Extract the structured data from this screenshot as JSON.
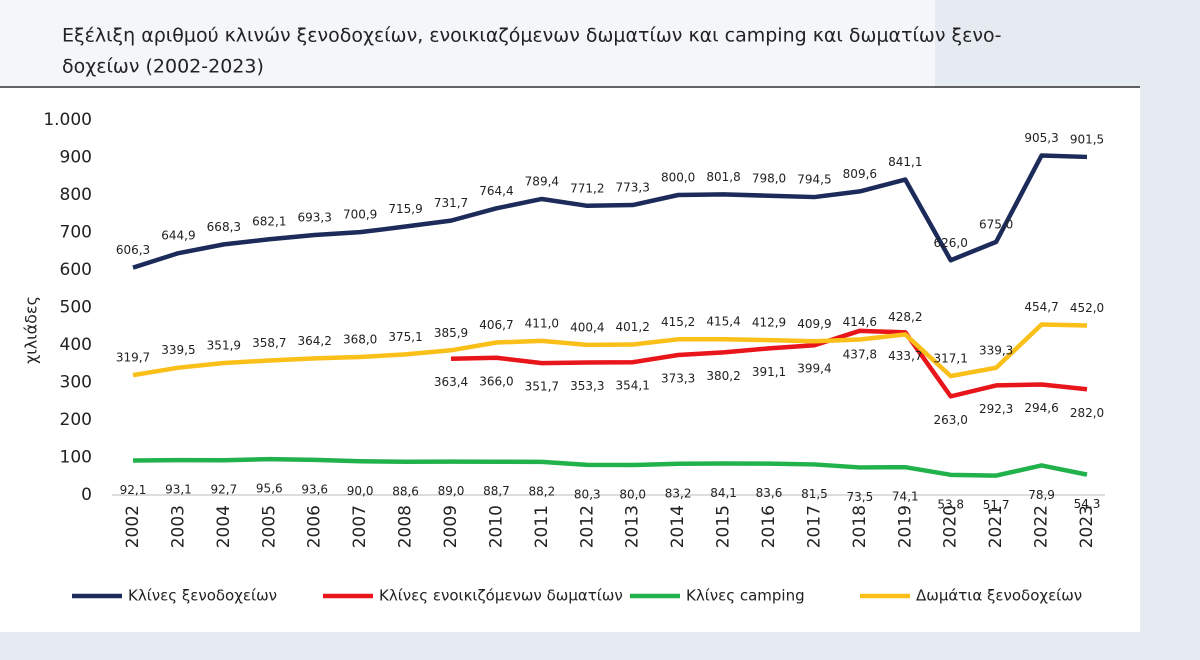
{
  "chart_data": {
    "type": "line",
    "title": [
      "Εξέλιξη αριθμού κλινών ξενοδοχείων, ενοικιαζόμενων δωματίων και camping και δωματίων ξενο-",
      "δοχείων (2002-2023)"
    ],
    "ylabel": "χιλιάδες",
    "categories": [
      "2002",
      "2003",
      "2004",
      "2005",
      "2006",
      "2007",
      "2008",
      "2009",
      "2010",
      "2011",
      "2012",
      "2013",
      "2014",
      "2015",
      "2016",
      "2017",
      "2018",
      "2019",
      "2020",
      "2021",
      "2022",
      "2023"
    ],
    "ylim": [
      0,
      1000
    ],
    "yticks": [
      0,
      100,
      200,
      300,
      400,
      500,
      600,
      700,
      800,
      900,
      {
        "value": 1000,
        "label": "1.000"
      }
    ],
    "grid": false,
    "legend": "bottom",
    "series": [
      {
        "name": "Κλίνες ξενοδοχείων",
        "color": "#1c2b5a",
        "values": [
          606.3,
          644.9,
          668.3,
          682.1,
          693.3,
          700.9,
          715.9,
          731.7,
          764.4,
          789.4,
          771.2,
          773.3,
          800.0,
          801.8,
          798.0,
          794.5,
          809.6,
          841.1,
          626.0,
          675.0,
          905.3,
          901.5
        ],
        "value_labels": [
          "606,3",
          "644,9",
          "668,3",
          "682,1",
          "693,3",
          "700,9",
          "715,9",
          "731,7",
          "764,4",
          "789,4",
          "771,2",
          "773,3",
          "800,0",
          "801,8",
          "798,0",
          "794,5",
          "809,6",
          "841,1",
          "626,0",
          "675,0",
          "905,3",
          "901,5"
        ]
      },
      {
        "name": "Κλίνες ενοικιζόμενων δωματίων",
        "color": "#e8151b",
        "values": [
          null,
          null,
          null,
          null,
          null,
          null,
          null,
          363.4,
          366.0,
          351.7,
          353.3,
          354.1,
          373.3,
          380.2,
          391.1,
          399.4,
          437.8,
          433.7,
          263.0,
          292.3,
          294.6,
          282.0
        ],
        "value_labels": [
          null,
          null,
          null,
          null,
          null,
          null,
          null,
          "363,4",
          "366,0",
          "351,7",
          "353,3",
          "354,1",
          "373,3",
          "380,2",
          "391,1",
          "399,4",
          "437,8",
          "433,7",
          "263,0",
          "292,3",
          "294,6",
          "282,0"
        ]
      },
      {
        "name": "Κλίνες camping",
        "color": "#22b24c",
        "values": [
          92.1,
          93.1,
          92.7,
          95.6,
          93.6,
          90.0,
          88.6,
          89.0,
          88.7,
          88.2,
          80.3,
          80.0,
          83.2,
          84.1,
          83.6,
          81.5,
          73.5,
          74.1,
          53.8,
          51.7,
          78.9,
          54.3
        ],
        "value_labels": [
          "92,1",
          "93,1",
          "92,7",
          "95,6",
          "93,6",
          "90,0",
          "88,6",
          "89,0",
          "88,7",
          "88,2",
          "80,3",
          "80,0",
          "83,2",
          "84,1",
          "83,6",
          "81,5",
          "73,5",
          "74,1",
          "53,8",
          "51,7",
          "78,9",
          "54,3"
        ]
      },
      {
        "name": "Δωμάτια ξενοδοχείων",
        "color": "#fbbf1a",
        "values": [
          319.7,
          339.5,
          351.9,
          358.7,
          364.2,
          368.0,
          375.1,
          385.9,
          406.7,
          411.0,
          400.4,
          401.2,
          415.2,
          415.4,
          412.9,
          409.9,
          414.6,
          428.2,
          317.1,
          339.3,
          454.7,
          452.0
        ],
        "value_labels": [
          "319,7",
          "339,5",
          "351,9",
          "358,7",
          "364,2",
          "368,0",
          "375,1",
          "385,9",
          "406,7",
          "411,0",
          "400,4",
          "401,2",
          "415,2",
          "415,4",
          "412,9",
          "409,9",
          "414,6",
          "428,2",
          "317,1",
          "339,3",
          "454,7",
          "452,0"
        ]
      }
    ]
  }
}
